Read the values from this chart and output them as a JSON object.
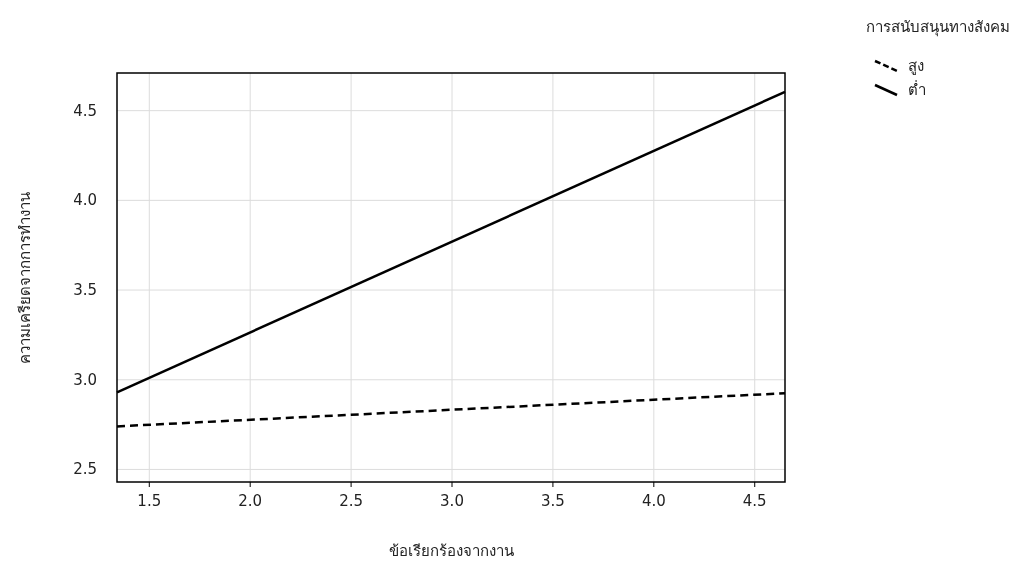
{
  "chart_data": {
    "type": "line",
    "xlabel": "ข้อเรียกร้องจากงาน",
    "ylabel": "ความเครียดจากการทำงาน",
    "legend_title": "การสนับสนุนทางสังคม",
    "x": [
      1.34,
      4.65
    ],
    "series": [
      {
        "name": "สูง",
        "color": "#000000",
        "line_style": "dashed",
        "values": [
          2.74,
          2.925
        ]
      },
      {
        "name": "ต่ำ",
        "color": "#000000",
        "line_style": "solid",
        "values": [
          2.93,
          4.605
        ]
      }
    ],
    "xlim": [
      1.34,
      4.65
    ],
    "ylim": [
      2.43,
      4.71
    ],
    "xticks": [
      1.5,
      {
        "value": 2,
        "label": "2.0"
      },
      2.5,
      {
        "value": 3,
        "label": "3.0"
      },
      3.5,
      {
        "value": 4,
        "label": "4.0"
      },
      4.5
    ],
    "yticks": [
      2.5,
      {
        "value": 3,
        "label": "3.0"
      },
      3.5,
      {
        "value": 4,
        "label": "4.0"
      },
      4.5
    ],
    "grid": true,
    "legend": "top right",
    "marker": "none"
  }
}
